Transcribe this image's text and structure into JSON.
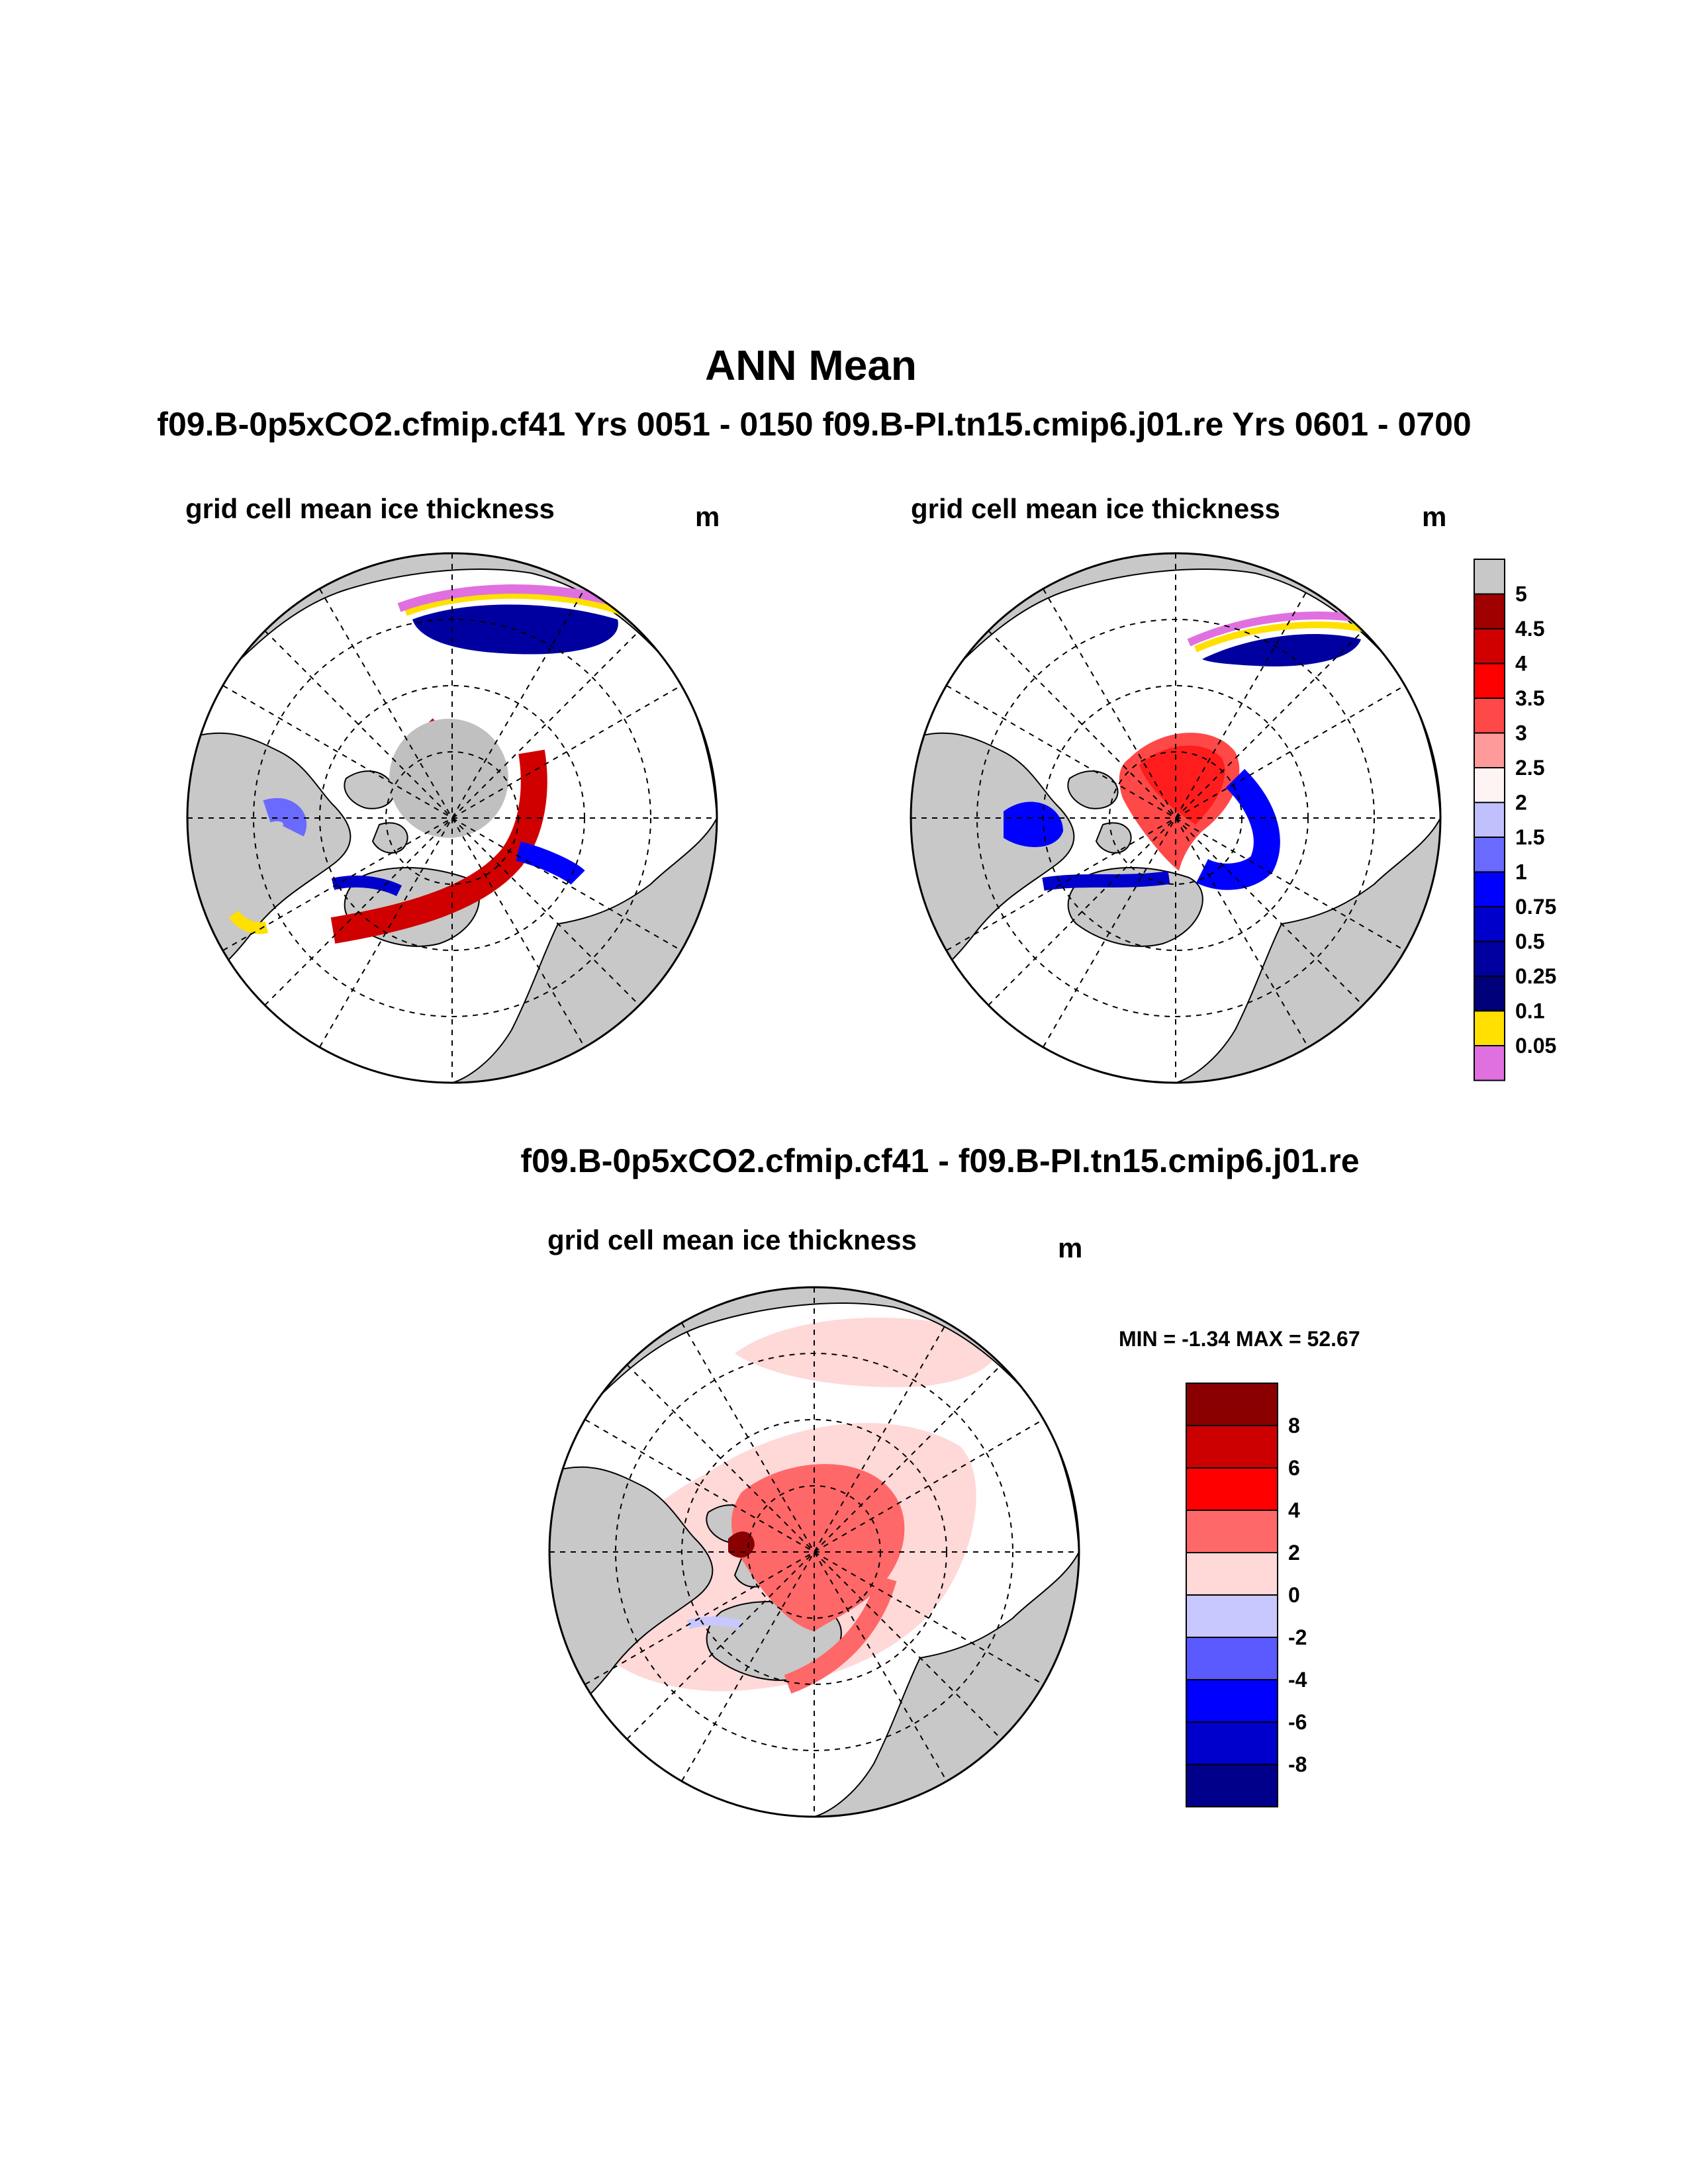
{
  "title": "ANN Mean",
  "subtitle": "f09.B-0p5xCO2.cfmip.cf41  Yrs 0051 - 0150  f09.B-PI.tn15.cmip6.j01.re  Yrs 0601 - 0700",
  "panels": [
    {
      "title": "grid cell mean ice thickness",
      "unit": "m"
    },
    {
      "title": "grid cell mean ice thickness",
      "unit": "m"
    }
  ],
  "diff_panel": {
    "header": "f09.B-0p5xCO2.cfmip.cf41 - f09.B-PI.tn15.cmip6.j01.re",
    "title": "grid cell mean ice thickness",
    "unit": "m",
    "minmax": "MIN =  -1.34 MAX =  52.67"
  },
  "colors": {
    "land": "#c8c8c8",
    "ocean": "#ffffff",
    "coast": "#000000"
  },
  "chart_data": [
    {
      "type": "heatmap",
      "projection": "north polar stereographic",
      "title": "grid cell mean ice thickness",
      "units": "m",
      "colorbar": {
        "labels": [
          "5",
          "4.5",
          "4",
          "3.5",
          "3",
          "2.5",
          "2",
          "1.5",
          "1",
          "0.75",
          "0.5",
          "0.25",
          "0.1",
          "0.05"
        ],
        "colors": [
          "#c8c8c8",
          "#a00000",
          "#d00000",
          "#ff0000",
          "#ff4848",
          "#ff9a9a",
          "#fff4f4",
          "#c0c0ff",
          "#6a6aff",
          "#0000ff",
          "#0000cc",
          "#0000a0",
          "#00007a",
          "#ffe000",
          "#e070e0"
        ]
      }
    },
    {
      "type": "heatmap",
      "projection": "north polar stereographic",
      "title": "grid cell mean ice thickness",
      "units": "m",
      "colorbar": {
        "labels": [
          "5",
          "4.5",
          "4",
          "3.5",
          "3",
          "2.5",
          "2",
          "1.5",
          "1",
          "0.75",
          "0.5",
          "0.25",
          "0.1",
          "0.05"
        ],
        "colors": [
          "#c8c8c8",
          "#a00000",
          "#d00000",
          "#ff0000",
          "#ff4848",
          "#ff9a9a",
          "#fff4f4",
          "#c0c0ff",
          "#6a6aff",
          "#0000ff",
          "#0000cc",
          "#0000a0",
          "#00007a",
          "#ffe000",
          "#e070e0"
        ]
      }
    },
    {
      "type": "heatmap",
      "projection": "north polar stereographic",
      "title": "grid cell mean ice thickness",
      "units": "m",
      "min": -1.34,
      "max": 52.67,
      "colorbar": {
        "labels": [
          "8",
          "6",
          "4",
          "2",
          "0",
          "-2",
          "-4",
          "-6",
          "-8"
        ],
        "colors": [
          "#8a0000",
          "#cc0000",
          "#ff0000",
          "#ff6868",
          "#ffd8d8",
          "#c8c8ff",
          "#5a5aff",
          "#0000ff",
          "#0000cc",
          "#00008a"
        ]
      }
    }
  ]
}
